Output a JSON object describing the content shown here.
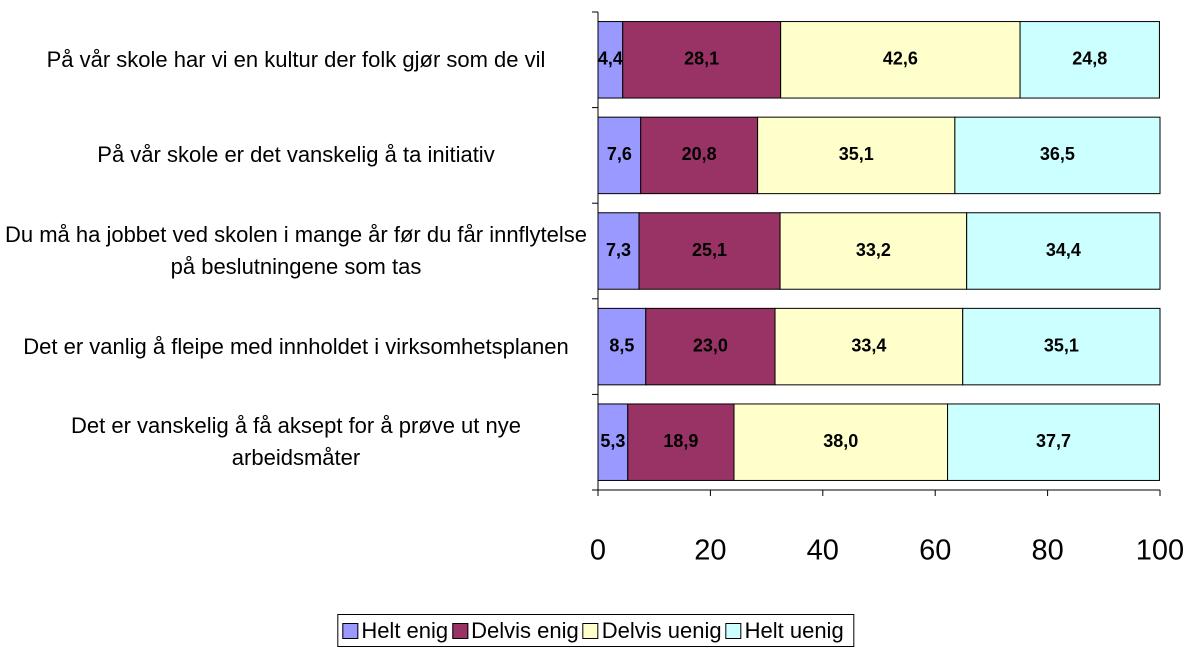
{
  "chart_data": {
    "type": "stacked_bar_horizontal",
    "categories": [
      "På vår skole har vi en kultur der folk gjør som de vil",
      "På vår skole er det vanskelig å ta initiativ",
      "Du må ha jobbet ved skolen i mange år før du får innflytelse på beslutningene som tas",
      "Det er vanlig å fleipe med innholdet i virksomhetsplanen",
      "Det er vanskelig å få aksept for å prøve ut nye arbeidsmåter"
    ],
    "series": [
      {
        "name": "Helt enig",
        "color": "#9999ff",
        "values": [
          4.4,
          7.6,
          7.3,
          8.5,
          5.3
        ],
        "value_labels": [
          "4,4",
          "7,6",
          "7,3",
          "8,5",
          "5,3"
        ]
      },
      {
        "name": "Delvis enig",
        "color": "#993366",
        "values": [
          28.1,
          20.8,
          25.1,
          23.0,
          18.9
        ],
        "value_labels": [
          "28,1",
          "20,8",
          "25,1",
          "23,0",
          "18,9"
        ]
      },
      {
        "name": "Delvis uenig",
        "color": "#ffffcc",
        "values": [
          42.6,
          35.1,
          33.2,
          33.4,
          38.0
        ],
        "value_labels": [
          "42,6",
          "35,1",
          "33,2",
          "33,4",
          "38,0"
        ]
      },
      {
        "name": "Helt uenig",
        "color": "#ccffff",
        "values": [
          24.8,
          36.5,
          34.4,
          35.1,
          37.7
        ],
        "value_labels": [
          "24,8",
          "36,5",
          "34,4",
          "35,1",
          "37,7"
        ]
      }
    ],
    "xlim": [
      0,
      100
    ],
    "xticks": [
      0,
      20,
      40,
      60,
      80,
      100
    ],
    "legend": "bottom"
  }
}
